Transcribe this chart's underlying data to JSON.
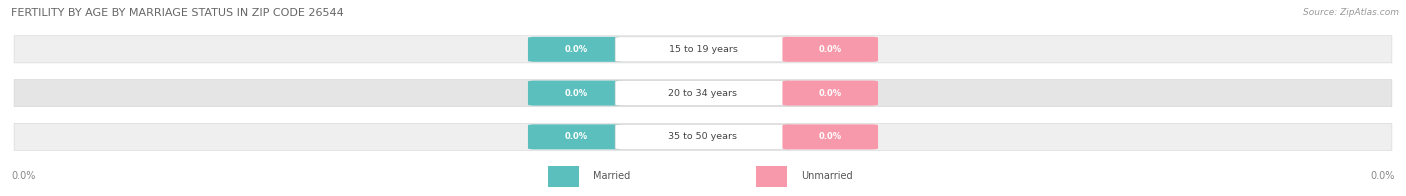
{
  "title": "FERTILITY BY AGE BY MARRIAGE STATUS IN ZIP CODE 26544",
  "source": "Source: ZipAtlas.com",
  "categories": [
    "15 to 19 years",
    "20 to 34 years",
    "35 to 50 years"
  ],
  "married_color": "#5bbfbe",
  "unmarried_color": "#f799aa",
  "row_bg_even": "#efefef",
  "row_bg_odd": "#e5e5e5",
  "label_married": "Married",
  "label_unmarried": "Unmarried",
  "tick_label": "0.0%",
  "value_label": "0.0%",
  "background_color": "#ffffff",
  "title_color": "#666666",
  "source_color": "#999999",
  "tick_color": "#888888",
  "category_text_color": "#444444"
}
